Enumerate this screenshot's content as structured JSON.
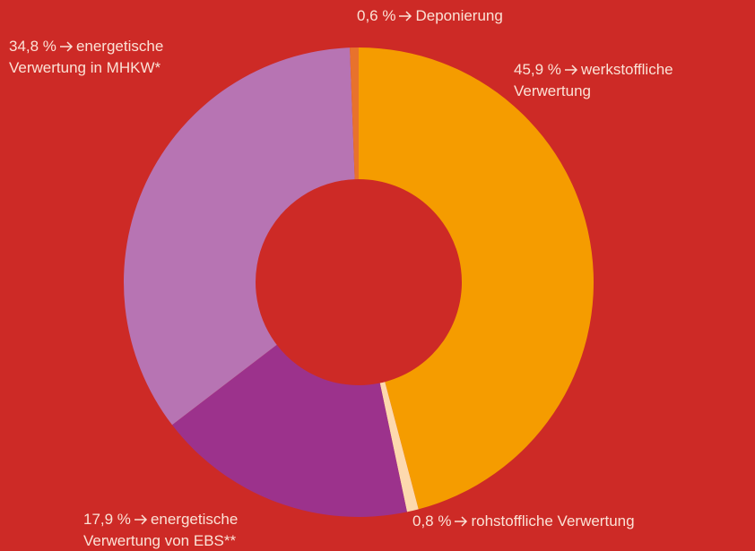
{
  "chart_data": {
    "type": "donut",
    "categories": [
      "werkstoffliche Verwertung",
      "rohstoffliche Verwertung",
      "energetische Verwertung von EBS**",
      "energetische Verwertung in MHKW*",
      "Deponierung"
    ],
    "values": [
      45.9,
      0.8,
      17.9,
      34.8,
      0.6
    ],
    "value_labels": [
      "45,9 %",
      "0,8 %",
      "17,9 %",
      "34,8 %",
      "0,6 %"
    ],
    "colors": [
      "#f59c00",
      "#fdd9ae",
      "#9c328c",
      "#b774b3",
      "#e8722c"
    ]
  }
}
